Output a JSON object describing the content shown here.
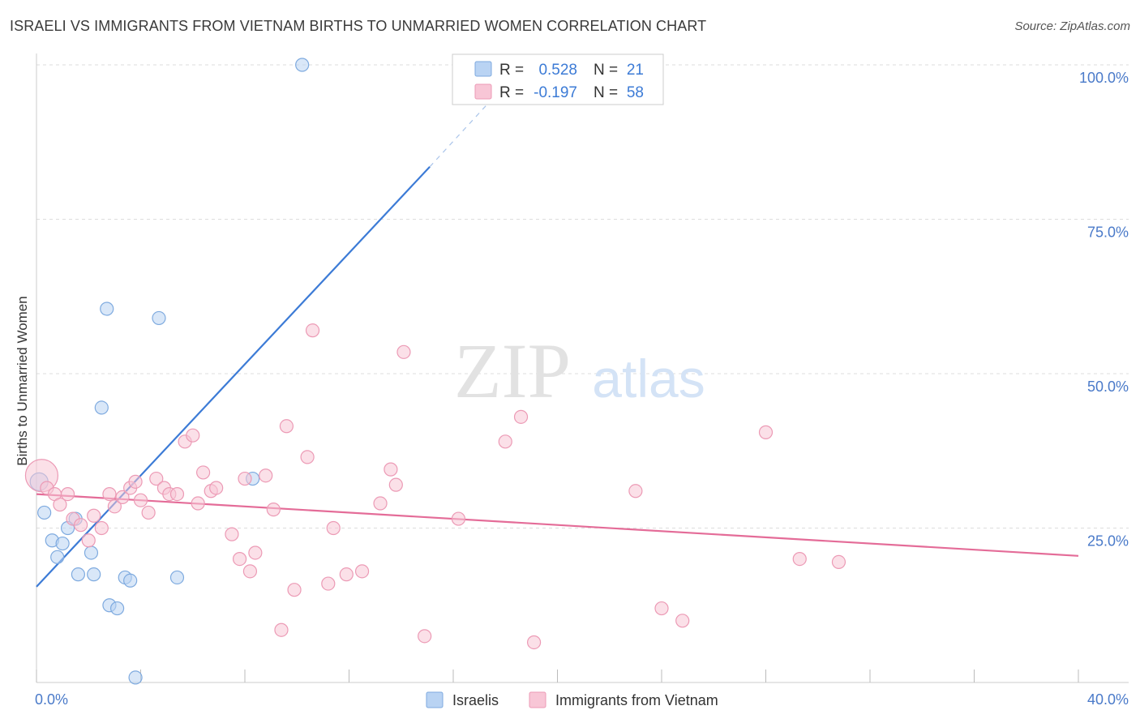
{
  "title": "ISRAELI VS IMMIGRANTS FROM VIETNAM BIRTHS TO UNMARRIED WOMEN CORRELATION CHART",
  "source": "Source: ZipAtlas.com",
  "watermark": {
    "zip": "ZIP",
    "atlas": "atlas"
  },
  "colors": {
    "blue_fill": "#b9d3f3",
    "blue_stroke": "#7eaadf",
    "blue_line": "#3c7bd6",
    "pink_fill": "#f8c6d6",
    "pink_stroke": "#ec9ab5",
    "pink_line": "#e46c98",
    "axis_label": "#4a7ac9",
    "grid": "#dddddd"
  },
  "legend_box": {
    "rows": [
      {
        "r_label": "R =",
        "r_value": "0.528",
        "n_label": "N =",
        "n_value": "21"
      },
      {
        "r_label": "R =",
        "r_value": "-0.197",
        "n_label": "N =",
        "n_value": "58"
      }
    ]
  },
  "chart_data": {
    "type": "scatter",
    "xlabel": "",
    "ylabel": "Births to Unmarried Women",
    "xlim": [
      0,
      40
    ],
    "ylim": [
      0,
      100
    ],
    "x_tick_labels": [
      {
        "value": 0,
        "label": "0.0%"
      },
      {
        "value": 40,
        "label": "40.0%"
      }
    ],
    "y_tick_labels": [
      {
        "value": 25,
        "label": "25.0%"
      },
      {
        "value": 50,
        "label": "50.0%"
      },
      {
        "value": 75,
        "label": "75.0%"
      },
      {
        "value": 100,
        "label": "100.0%"
      }
    ],
    "legend": [
      {
        "name": "Israelis"
      },
      {
        "name": "Immigrants from Vietnam"
      }
    ],
    "series": [
      {
        "name": "Israelis",
        "color": "blue",
        "points": [
          [
            0.1,
            32.5
          ],
          [
            0.3,
            27.5
          ],
          [
            0.6,
            23.0
          ],
          [
            0.8,
            20.3
          ],
          [
            1.0,
            22.5
          ],
          [
            1.2,
            25.0
          ],
          [
            1.5,
            26.5
          ],
          [
            1.6,
            17.5
          ],
          [
            2.1,
            21.0
          ],
          [
            2.2,
            17.5
          ],
          [
            2.5,
            44.5
          ],
          [
            2.7,
            60.5
          ],
          [
            2.8,
            12.5
          ],
          [
            3.1,
            12.0
          ],
          [
            3.4,
            17.0
          ],
          [
            3.6,
            16.5
          ],
          [
            3.8,
            0.8
          ],
          [
            4.7,
            59.0
          ],
          [
            5.4,
            17.0
          ],
          [
            8.3,
            33.0
          ],
          [
            10.2,
            100.0
          ]
        ],
        "trend": {
          "x": [
            0,
            15.1
          ],
          "y": [
            15.5,
            83.5
          ],
          "dash_to": {
            "x": 17.5,
            "y": 94.5
          }
        }
      },
      {
        "name": "Immigrants from Vietnam",
        "color": "pink",
        "points": [
          [
            0.2,
            33.5
          ],
          [
            0.4,
            31.5
          ],
          [
            0.7,
            30.5
          ],
          [
            0.9,
            28.8
          ],
          [
            1.2,
            30.5
          ],
          [
            1.4,
            26.5
          ],
          [
            1.7,
            25.5
          ],
          [
            2.0,
            23.0
          ],
          [
            2.2,
            27.0
          ],
          [
            2.5,
            25.0
          ],
          [
            2.8,
            30.5
          ],
          [
            3.0,
            28.5
          ],
          [
            3.3,
            30.0
          ],
          [
            3.6,
            31.5
          ],
          [
            3.8,
            32.5
          ],
          [
            4.0,
            29.5
          ],
          [
            4.3,
            27.5
          ],
          [
            4.6,
            33.0
          ],
          [
            4.9,
            31.5
          ],
          [
            5.1,
            30.5
          ],
          [
            5.4,
            30.5
          ],
          [
            5.7,
            39.0
          ],
          [
            6.0,
            40.0
          ],
          [
            6.2,
            29.0
          ],
          [
            6.4,
            34.0
          ],
          [
            6.7,
            31.0
          ],
          [
            6.9,
            31.5
          ],
          [
            7.5,
            24.0
          ],
          [
            7.8,
            20.0
          ],
          [
            8.0,
            33.0
          ],
          [
            8.2,
            18.0
          ],
          [
            8.4,
            21.0
          ],
          [
            8.8,
            33.5
          ],
          [
            9.1,
            28.0
          ],
          [
            9.4,
            8.5
          ],
          [
            9.6,
            41.5
          ],
          [
            9.9,
            15.0
          ],
          [
            10.4,
            36.5
          ],
          [
            10.6,
            57.0
          ],
          [
            11.2,
            16.0
          ],
          [
            11.4,
            25.0
          ],
          [
            11.9,
            17.5
          ],
          [
            12.5,
            18.0
          ],
          [
            13.2,
            29.0
          ],
          [
            13.6,
            34.5
          ],
          [
            13.8,
            32.0
          ],
          [
            14.1,
            53.5
          ],
          [
            14.9,
            7.5
          ],
          [
            16.2,
            26.5
          ],
          [
            18.0,
            39.0
          ],
          [
            18.6,
            43.0
          ],
          [
            19.1,
            6.5
          ],
          [
            23.0,
            31.0
          ],
          [
            24.0,
            12.0
          ],
          [
            24.8,
            10.0
          ],
          [
            28.0,
            40.5
          ],
          [
            29.3,
            20.0
          ],
          [
            30.8,
            19.5
          ]
        ],
        "trend": {
          "x": [
            0,
            40
          ],
          "y": [
            30.5,
            20.5
          ]
        }
      }
    ]
  }
}
